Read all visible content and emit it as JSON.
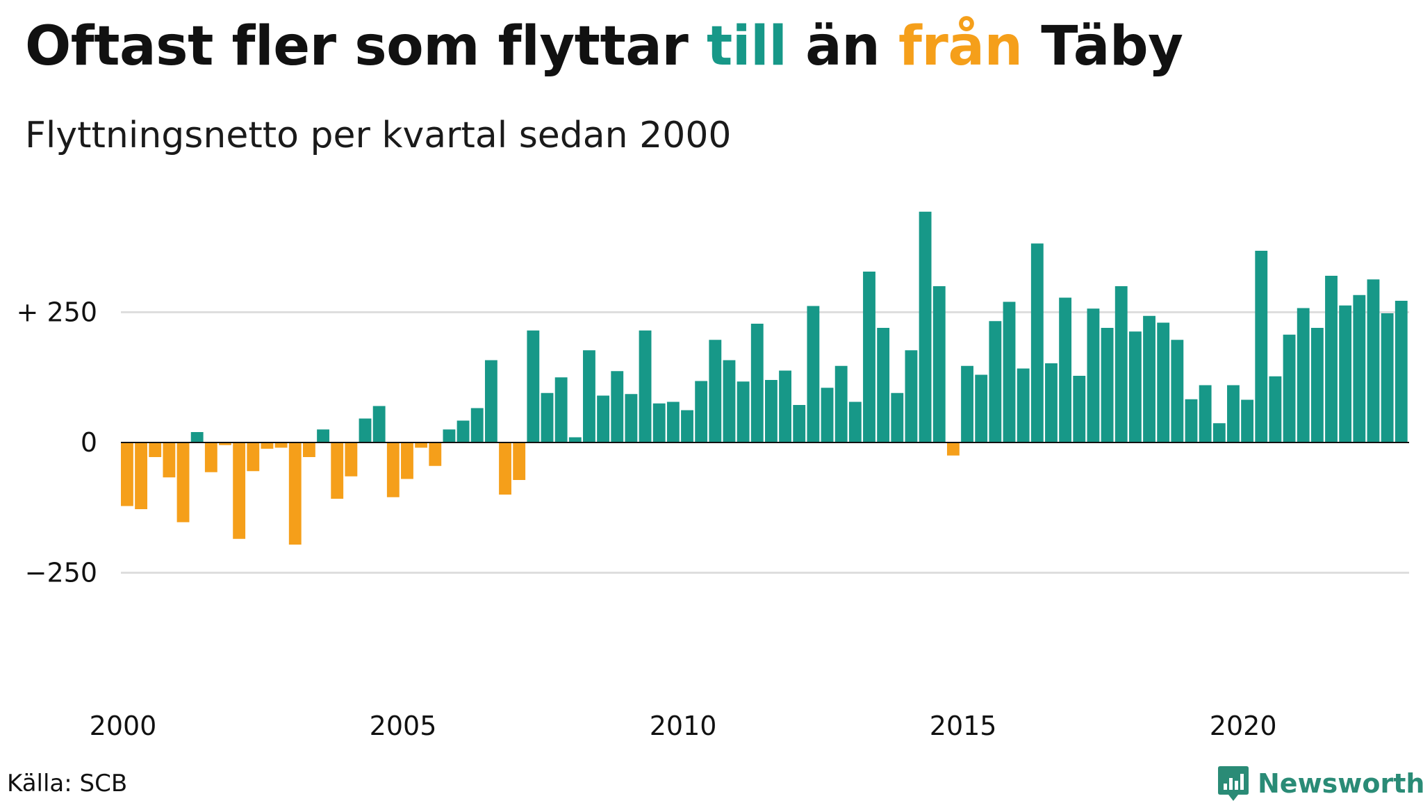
{
  "header": {
    "title_parts": [
      "Oftast fler som flyttar ",
      "till",
      " än ",
      "från",
      " Täby"
    ],
    "subtitle": "Flyttningsnetto per kvartal sedan 2000"
  },
  "colors": {
    "positive": "#179888",
    "negative": "#F59F1A",
    "gridline": "#dedede",
    "zero_line": "#111111",
    "brand": "#2A8B76"
  },
  "footer": {
    "source": "Källa: SCB",
    "brand_name": "Newsworthy",
    "brand_icon": "bar-chart-speech-bubble-icon"
  },
  "chart_data": {
    "type": "bar",
    "x_start": "2000 Q1",
    "frequency": "quarterly",
    "values": [
      -122,
      -128,
      -28,
      -67,
      -153,
      20,
      -57,
      -5,
      -185,
      -55,
      -12,
      -10,
      -196,
      -28,
      25,
      -108,
      -65,
      46,
      70,
      -105,
      -70,
      -10,
      -45,
      25,
      42,
      66,
      158,
      -100,
      -72,
      215,
      95,
      125,
      10,
      177,
      90,
      137,
      93,
      215,
      75,
      78,
      62,
      118,
      197,
      158,
      117,
      228,
      120,
      138,
      72,
      262,
      105,
      147,
      78,
      328,
      220,
      95,
      177,
      443,
      300,
      -25,
      147,
      130,
      233,
      270,
      142,
      382,
      152,
      278,
      128,
      257,
      220,
      300,
      213,
      243,
      230,
      197,
      83,
      110,
      37,
      110,
      82,
      368,
      127,
      207,
      258,
      220,
      320,
      263,
      283,
      313,
      248,
      272
    ],
    "x_ticks": [
      "2000",
      "2005",
      "2010",
      "2015",
      "2020"
    ],
    "y_ticks": [
      {
        "value": 250,
        "label": "+ 250"
      },
      {
        "value": 0,
        "label": "0"
      },
      {
        "value": -250,
        "label": "−250"
      }
    ],
    "ylim": [
      -500,
      450
    ],
    "grid": true,
    "legend": "none"
  }
}
